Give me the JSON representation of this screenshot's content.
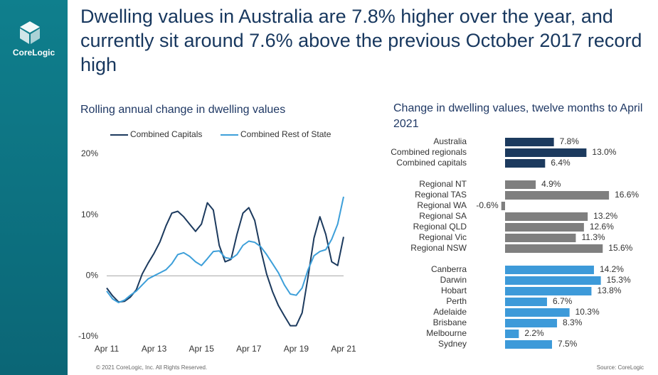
{
  "header": {
    "logo": "CoreLogic",
    "title": "Dwelling values in Australia are 7.8% higher over the year, and currently sit around 7.6% above the previous October 2017 record high"
  },
  "footer": {
    "copyright": "© 2021 CoreLogic, Inc. All Rights Reserved.",
    "source": "Source: CoreLogic"
  },
  "chart_data": [
    {
      "type": "line",
      "title": "Rolling annual change in dwelling values",
      "legend": "top",
      "categories": [
        "Apr 11",
        null,
        null,
        null,
        null,
        null,
        null,
        null,
        "Apr 13",
        null,
        null,
        null,
        null,
        null,
        null,
        null,
        "Apr 15",
        null,
        null,
        null,
        null,
        null,
        null,
        null,
        "Apr 17",
        null,
        null,
        null,
        null,
        null,
        null,
        null,
        "Apr 19",
        null,
        null,
        null,
        null,
        null,
        null,
        null,
        "Apr 21"
      ],
      "series": [
        {
          "name": "Combined Capitals",
          "color": "#1c3a5e",
          "values": [
            -2.0,
            -3.3,
            -4.3,
            -4.2,
            -3.5,
            -2.3,
            0.3,
            2.1,
            3.7,
            5.6,
            8.2,
            10.3,
            10.6,
            9.7,
            8.5,
            7.3,
            8.5,
            12.0,
            10.8,
            5.0,
            2.3,
            2.7,
            6.8,
            10.3,
            11.2,
            9.1,
            4.4,
            0.3,
            -2.6,
            -4.9,
            -6.6,
            -8.2,
            -8.2,
            -6.1,
            -0.2,
            6.2,
            9.7,
            6.8,
            2.3,
            1.7,
            6.4
          ]
        },
        {
          "name": "Combined Rest of State",
          "color": "#3d9fd9",
          "values": [
            -2.5,
            -3.8,
            -4.4,
            -4.0,
            -3.2,
            -2.5,
            -1.5,
            -0.5,
            0.0,
            0.5,
            1.0,
            2.0,
            3.5,
            3.8,
            3.2,
            2.3,
            1.7,
            2.8,
            4.0,
            4.1,
            3.0,
            2.8,
            3.5,
            5.0,
            5.7,
            5.5,
            4.8,
            3.5,
            2.0,
            0.5,
            -1.5,
            -3.0,
            -3.2,
            -2.0,
            1.0,
            3.3,
            4.0,
            4.3,
            6.0,
            8.5,
            13.0
          ]
        }
      ],
      "ylim": [
        -10,
        20
      ],
      "yticks": [
        {
          "value": 20,
          "label": "20%"
        },
        {
          "value": 10,
          "label": "10%"
        },
        {
          "value": 0,
          "label": "0%"
        },
        {
          "value": -10,
          "label": "-10%"
        }
      ]
    },
    {
      "type": "hbar",
      "title": "Change in dwelling values, twelve months to April 2021",
      "categories": [
        "Australia",
        "Combined regionals",
        "Combined capitals",
        "Regional NT",
        "Regional TAS",
        "Regional WA",
        "Regional SA",
        "Regional QLD",
        "Regional Vic",
        "Regional NSW",
        "Canberra",
        "Darwin",
        "Hobart",
        "Perth",
        "Adelaide",
        "Brisbane",
        "Melbourne",
        "Sydney"
      ],
      "values": [
        7.8,
        13.0,
        6.4,
        4.9,
        16.6,
        -0.6,
        13.2,
        12.6,
        11.3,
        15.6,
        14.2,
        15.3,
        13.8,
        6.7,
        10.3,
        8.3,
        2.2,
        7.5
      ],
      "value_labels": [
        "7.8%",
        "13.0%",
        "6.4%",
        "4.9%",
        "16.6%",
        "-0.6%",
        "13.2%",
        "12.6%",
        "11.3%",
        "15.6%",
        "14.2%",
        "15.3%",
        "13.8%",
        "6.7%",
        "10.3%",
        "8.3%",
        "2.2%",
        "7.5%"
      ],
      "colors": [
        "#1c3a5e",
        "#1c3a5e",
        "#1c3a5e",
        "#7f7f7f",
        "#7f7f7f",
        "#7f7f7f",
        "#7f7f7f",
        "#7f7f7f",
        "#7f7f7f",
        "#7f7f7f",
        "#3d9ad9",
        "#3d9ad9",
        "#3d9ad9",
        "#3d9ad9",
        "#3d9ad9",
        "#3d9ad9",
        "#3d9ad9",
        "#3d9ad9"
      ]
    }
  ]
}
